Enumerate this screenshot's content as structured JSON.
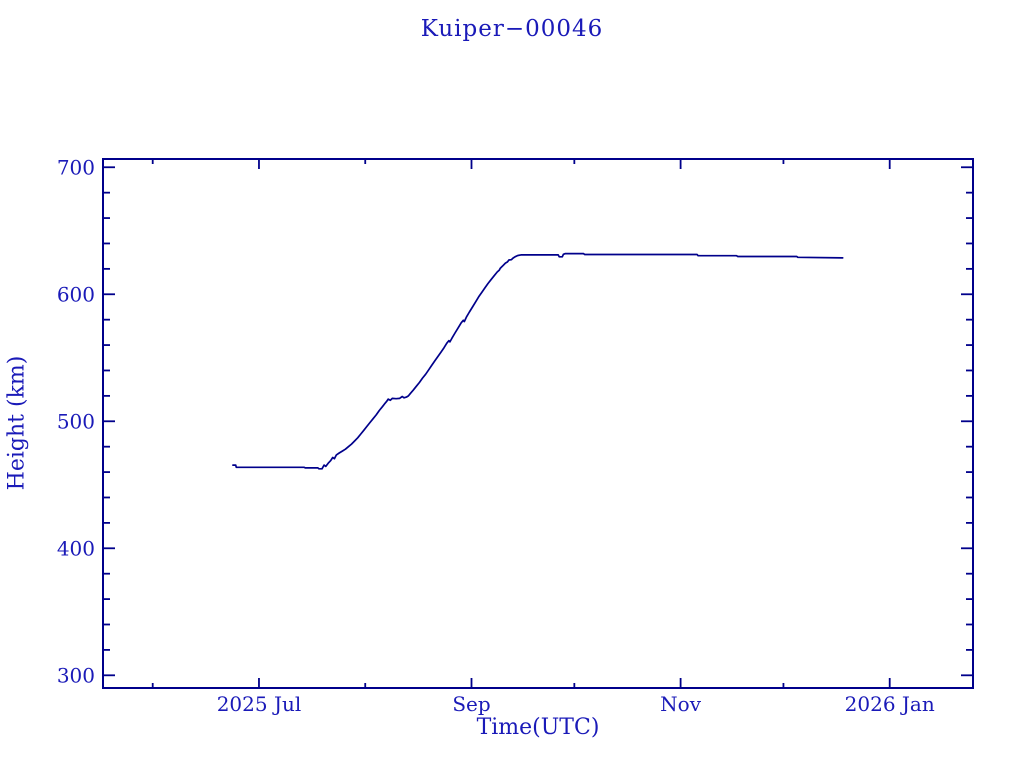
{
  "page": {
    "background": "#ffffff"
  },
  "chart_data": {
    "type": "line",
    "title": "Kuiper−00046",
    "xlabel": "Time(UTC)",
    "ylabel": "Height (km)",
    "legend": "none",
    "grid": "off",
    "colors": {
      "line": "#00008b",
      "axis": "#00008b",
      "text": "#1a1ab8",
      "background": "#ffffff"
    },
    "x_axis": {
      "unit": "days relative to 2025-07-01",
      "domain": [
        -45.5,
        208.3
      ],
      "major_ticks": [
        {
          "day": 0,
          "label": "2025 Jul"
        },
        {
          "day": 62,
          "label": "Sep"
        },
        {
          "day": 123,
          "label": "Nov"
        },
        {
          "day": 184,
          "label": "2026 Jan"
        }
      ],
      "minor_ticks": [
        -31,
        31,
        92,
        153
      ]
    },
    "y_axis": {
      "domain": [
        290,
        706.5
      ],
      "major_ticks": [
        300,
        400,
        500,
        600,
        700
      ],
      "minor_step": 20,
      "minor_range": [
        320,
        680
      ]
    },
    "series": [
      {
        "name": "height",
        "points": [
          [
            -7.6,
            465.5
          ],
          [
            -6.8,
            465.5
          ],
          [
            -6.6,
            463.8
          ],
          [
            13.2,
            463.8
          ],
          [
            13.5,
            463.3
          ],
          [
            17.2,
            463.3
          ],
          [
            17.5,
            462.6
          ],
          [
            18.4,
            462.6
          ],
          [
            19.0,
            465.5
          ],
          [
            19.5,
            464.5
          ],
          [
            20.2,
            467
          ],
          [
            20.9,
            469
          ],
          [
            21.5,
            471.5
          ],
          [
            22.0,
            470.5
          ],
          [
            22.6,
            473.5
          ],
          [
            23.4,
            475
          ],
          [
            24.3,
            476.5
          ],
          [
            25.2,
            478
          ],
          [
            26.1,
            480
          ],
          [
            27.0,
            482
          ],
          [
            27.9,
            484.5
          ],
          [
            28.8,
            487
          ],
          [
            29.7,
            490
          ],
          [
            30.6,
            493
          ],
          [
            31.5,
            496
          ],
          [
            32.4,
            499
          ],
          [
            33.3,
            502
          ],
          [
            34.2,
            505
          ],
          [
            35.1,
            508.5
          ],
          [
            36.0,
            511.5
          ],
          [
            36.6,
            513.5
          ],
          [
            37.2,
            515.5
          ],
          [
            37.7,
            517.5
          ],
          [
            38.3,
            516.5
          ],
          [
            38.9,
            518
          ],
          [
            40.0,
            517.8
          ],
          [
            41.0,
            518
          ],
          [
            41.8,
            519.5
          ],
          [
            42.3,
            518.5
          ],
          [
            43.0,
            519
          ],
          [
            43.6,
            520
          ],
          [
            44.2,
            522
          ],
          [
            45.0,
            524.5
          ],
          [
            45.9,
            527.5
          ],
          [
            46.8,
            530.5
          ],
          [
            47.7,
            534
          ],
          [
            48.6,
            537
          ],
          [
            49.5,
            540.5
          ],
          [
            50.4,
            544
          ],
          [
            51.3,
            547.5
          ],
          [
            52.2,
            551
          ],
          [
            53.1,
            554.5
          ],
          [
            54.0,
            558
          ],
          [
            54.8,
            561.5
          ],
          [
            55.4,
            563.5
          ],
          [
            55.7,
            562.5
          ],
          [
            56.3,
            565.5
          ],
          [
            57.2,
            569.5
          ],
          [
            58.1,
            573.5
          ],
          [
            59.0,
            577.5
          ],
          [
            59.6,
            579.5
          ],
          [
            59.9,
            578.5
          ],
          [
            60.5,
            582
          ],
          [
            61.4,
            586
          ],
          [
            62.3,
            590
          ],
          [
            63.2,
            594
          ],
          [
            64.1,
            598
          ],
          [
            65.0,
            601.5
          ],
          [
            65.9,
            605
          ],
          [
            66.8,
            608.5
          ],
          [
            67.7,
            611.5
          ],
          [
            68.6,
            614.5
          ],
          [
            69.5,
            617.5
          ],
          [
            70.1,
            619
          ],
          [
            70.4,
            620.5
          ],
          [
            71.0,
            622
          ],
          [
            71.9,
            624.5
          ],
          [
            72.5,
            625.5
          ],
          [
            72.9,
            627
          ],
          [
            73.6,
            627.2
          ],
          [
            74.1,
            628.5
          ],
          [
            74.7,
            629.5
          ],
          [
            75.5,
            630.5
          ],
          [
            76.4,
            631
          ],
          [
            80.0,
            631
          ],
          [
            87.3,
            631
          ],
          [
            87.6,
            629.5
          ],
          [
            88.5,
            629.5
          ],
          [
            88.8,
            631.5
          ],
          [
            89.4,
            632
          ],
          [
            94.7,
            632
          ],
          [
            95.0,
            631.3
          ],
          [
            127.8,
            631.3
          ],
          [
            128.1,
            630.4
          ],
          [
            139.3,
            630.4
          ],
          [
            139.7,
            629.7
          ],
          [
            156.9,
            629.7
          ],
          [
            157.2,
            629.1
          ],
          [
            170.3,
            628.6
          ]
        ]
      }
    ]
  }
}
